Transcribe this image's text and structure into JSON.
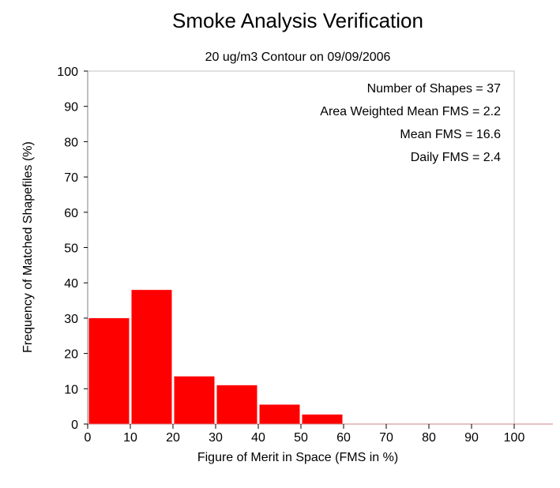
{
  "chart_data": {
    "type": "bar",
    "title": "Smoke Analysis Verification",
    "subtitle": "20 ug/m3 Contour on 09/09/2006",
    "xlabel": "Figure of Merit in Space (FMS in %)",
    "ylabel": "Frequency of Matched Shapefiles (%)",
    "xlim": [
      0,
      100
    ],
    "ylim": [
      0,
      100
    ],
    "xticks": [
      0,
      10,
      20,
      30,
      40,
      50,
      60,
      70,
      80,
      90,
      100
    ],
    "yticks": [
      0,
      10,
      20,
      30,
      40,
      50,
      60,
      70,
      80,
      90,
      100
    ],
    "bin_width": 10,
    "bins": [
      {
        "x0": 0,
        "x1": 10,
        "value": 30
      },
      {
        "x0": 10,
        "x1": 20,
        "value": 38
      },
      {
        "x0": 20,
        "x1": 30,
        "value": 13.5
      },
      {
        "x0": 30,
        "x1": 40,
        "value": 11
      },
      {
        "x0": 40,
        "x1": 50,
        "value": 5.5
      },
      {
        "x0": 50,
        "x1": 60,
        "value": 2.7
      },
      {
        "x0": 60,
        "x1": 70,
        "value": 0
      },
      {
        "x0": 70,
        "x1": 80,
        "value": 0
      },
      {
        "x0": 80,
        "x1": 90,
        "value": 0
      },
      {
        "x0": 90,
        "x1": 100,
        "value": 0
      }
    ],
    "annotations": [
      "Number of Shapes = 37",
      "Area Weighted Mean FMS = 2.2",
      "Mean FMS = 16.6",
      "Daily FMS = 2.4"
    ],
    "bar_color": "#ff0000",
    "grid": false
  }
}
